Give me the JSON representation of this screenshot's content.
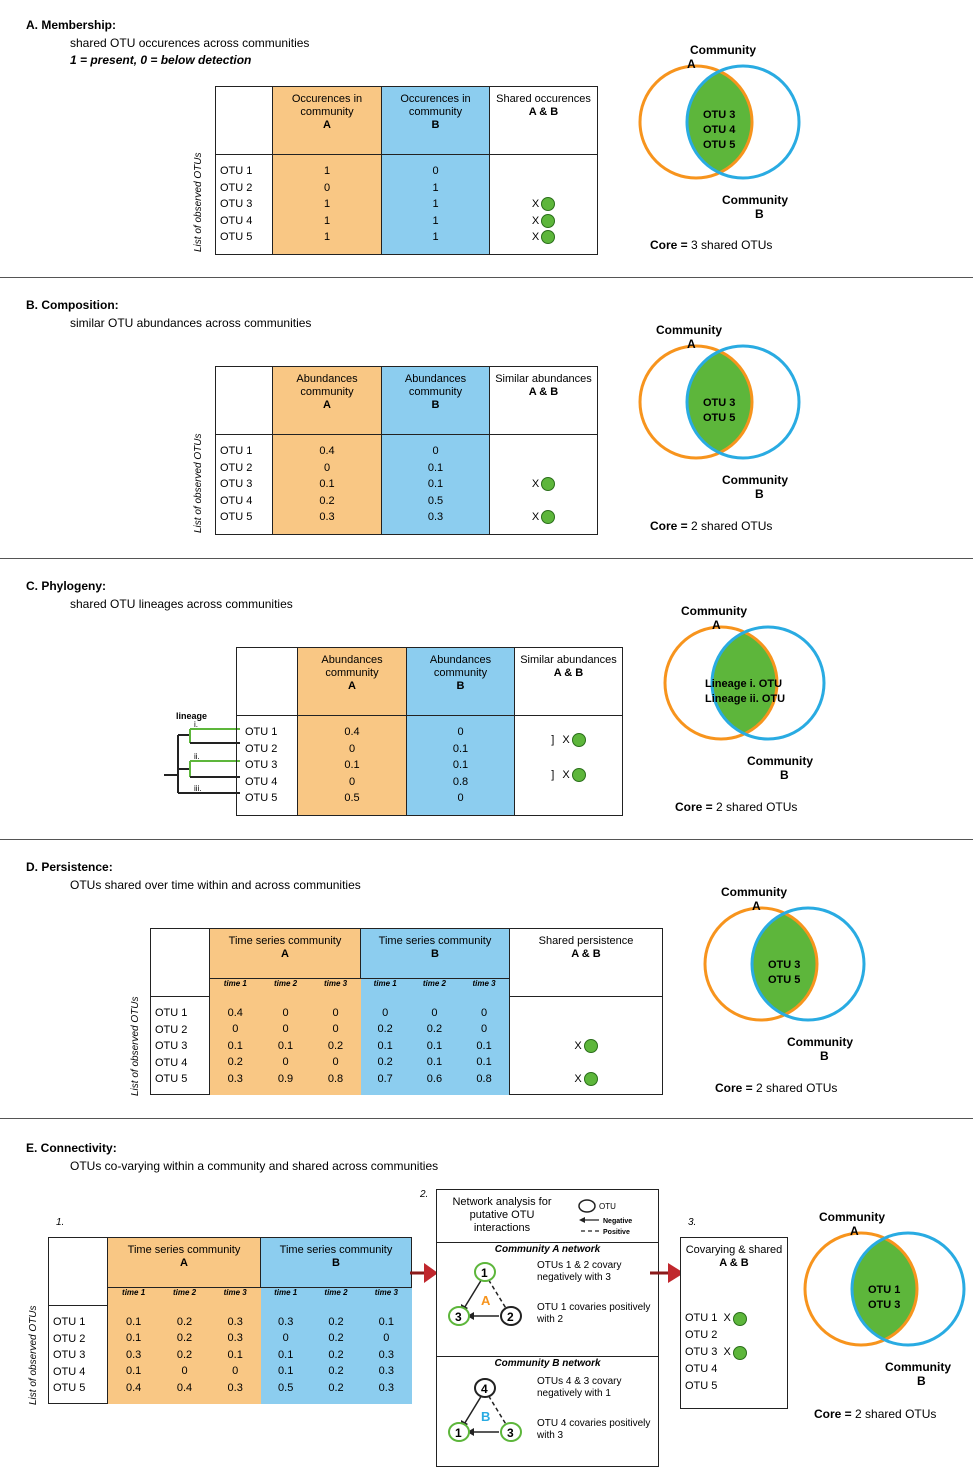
{
  "vertical_label": "List of observed OTUs",
  "otus": [
    "OTU 1",
    "OTU 2",
    "OTU 3",
    "OTU 4",
    "OTU 5"
  ],
  "labels": {
    "community_a": "Community\nA",
    "community_b": "Community\nB",
    "mark": "X"
  },
  "colors": {
    "orange": "#f7941d",
    "blue": "#29abe2",
    "green": "#5db63b"
  },
  "panel_a": {
    "title": "A. Membership",
    "subtitle": "shared OTU occurences across communities",
    "note": "1 = present, 0 = below detection",
    "headers": [
      "Occurences in community",
      "Occurences in community",
      "Shared occurences"
    ],
    "header_bold": [
      "A",
      "B",
      "A & B"
    ],
    "col_a": [
      "1",
      "0",
      "1",
      "1",
      "1"
    ],
    "col_b": [
      "0",
      "1",
      "1",
      "1",
      "1"
    ],
    "venn_text": [
      "OTU 3",
      "OTU 4",
      "OTU 5"
    ],
    "core_label": "Core =",
    "core_value": "3 shared OTUs"
  },
  "panel_b": {
    "title": "B. Composition",
    "subtitle": "similar OTU abundances across communities",
    "headers": [
      "Abundances community",
      "Abundances community",
      "Similar abundances"
    ],
    "header_bold": [
      "A",
      "B",
      "A & B"
    ],
    "col_a": [
      "0.4",
      "0",
      "0.1",
      "0.2",
      "0.3"
    ],
    "col_b": [
      "0",
      "0.1",
      "0.1",
      "0.5",
      "0.3"
    ],
    "venn_text": [
      "OTU 3",
      "OTU 5"
    ],
    "core_label": "Core =",
    "core_value": "2 shared OTUs"
  },
  "panel_c": {
    "title": "C. Phylogeny",
    "subtitle": "shared OTU lineages across communities",
    "lineage": "lineage",
    "lineage_marks": [
      "i.",
      "ii.",
      "iii."
    ],
    "headers": [
      "Abundances community",
      "Abundances community",
      "Similar abundances"
    ],
    "header_bold": [
      "A",
      "B",
      "A & B"
    ],
    "col_a": [
      "0.4",
      "0",
      "0.1",
      "0",
      "0.5"
    ],
    "col_b": [
      "0",
      "0.1",
      "0.1",
      "0.8",
      "0"
    ],
    "venn_text": [
      "Lineage i. OTU",
      "Lineage ii. OTU"
    ],
    "core_label": "Core =",
    "core_value": "2 shared OTUs"
  },
  "panel_d": {
    "title": "D. Persistence",
    "subtitle": "OTUs shared over time within and across communities",
    "headers": [
      "Time series community",
      "Time series community",
      "Shared persistence"
    ],
    "header_bold": [
      "A",
      "B",
      "A & B"
    ],
    "times": [
      "time 1",
      "time 2",
      "time 3"
    ],
    "a": [
      [
        "0.4",
        "0",
        "0"
      ],
      [
        "0",
        "0",
        "0"
      ],
      [
        "0.1",
        "0.1",
        "0.2"
      ],
      [
        "0.2",
        "0",
        "0"
      ],
      [
        "0.3",
        "0.9",
        "0.8"
      ]
    ],
    "b": [
      [
        "0",
        "0",
        "0"
      ],
      [
        "0.2",
        "0.2",
        "0"
      ],
      [
        "0.1",
        "0.1",
        "0.1"
      ],
      [
        "0.2",
        "0.1",
        "0.1"
      ],
      [
        "0.7",
        "0.6",
        "0.8"
      ]
    ],
    "venn_text": [
      "OTU 3",
      "OTU 5"
    ],
    "core_label": "Core =",
    "core_value": "2 shared OTUs"
  },
  "panel_e": {
    "title": "E. Connectivity",
    "subtitle": "OTUs co-varying within a community and shared across communities",
    "step1": "1.",
    "step2": "2.",
    "step3": "3.",
    "headers": [
      "Time series community",
      "Time series community"
    ],
    "header_bold": [
      "A",
      "B"
    ],
    "times": [
      "time 1",
      "time 2",
      "time 3"
    ],
    "a": [
      [
        "0.1",
        "0.2",
        "0.3"
      ],
      [
        "0.1",
        "0.2",
        "0.3"
      ],
      [
        "0.3",
        "0.2",
        "0.1"
      ],
      [
        "0.1",
        "0",
        "0"
      ],
      [
        "0.4",
        "0.4",
        "0.3"
      ]
    ],
    "b": [
      [
        "0.3",
        "0.2",
        "0.1"
      ],
      [
        "0",
        "0.2",
        "0"
      ],
      [
        "0.1",
        "0.2",
        "0.3"
      ],
      [
        "0.1",
        "0.2",
        "0.3"
      ],
      [
        "0.5",
        "0.2",
        "0.3"
      ]
    ],
    "net_title": "Network analysis for putative OTU interactions",
    "legend_otu": "OTU",
    "legend_neg": "Negative",
    "legend_pos": "Positive",
    "net_a_title": "Community A network",
    "net_a_text1": "OTUs 1 & 2 covary negatively with  3",
    "net_a_text2": "OTU 1 covaries positively with 2",
    "net_a_nodes": [
      "1",
      "3",
      "2"
    ],
    "net_a_letter": "A",
    "net_b_title": "Community B network",
    "net_b_text1": "OTUs 4 & 3 covary negatively with  1",
    "net_b_text2": "OTU 4 covaries positively with 3",
    "net_b_nodes": [
      "4",
      "1",
      "3"
    ],
    "net_b_letter": "B",
    "result_title": "Covarying & shared",
    "result_bold": "A & B",
    "venn_text": [
      "OTU 1",
      "OTU 3"
    ],
    "core_label": "Core =",
    "core_value": "2 shared OTUs"
  }
}
